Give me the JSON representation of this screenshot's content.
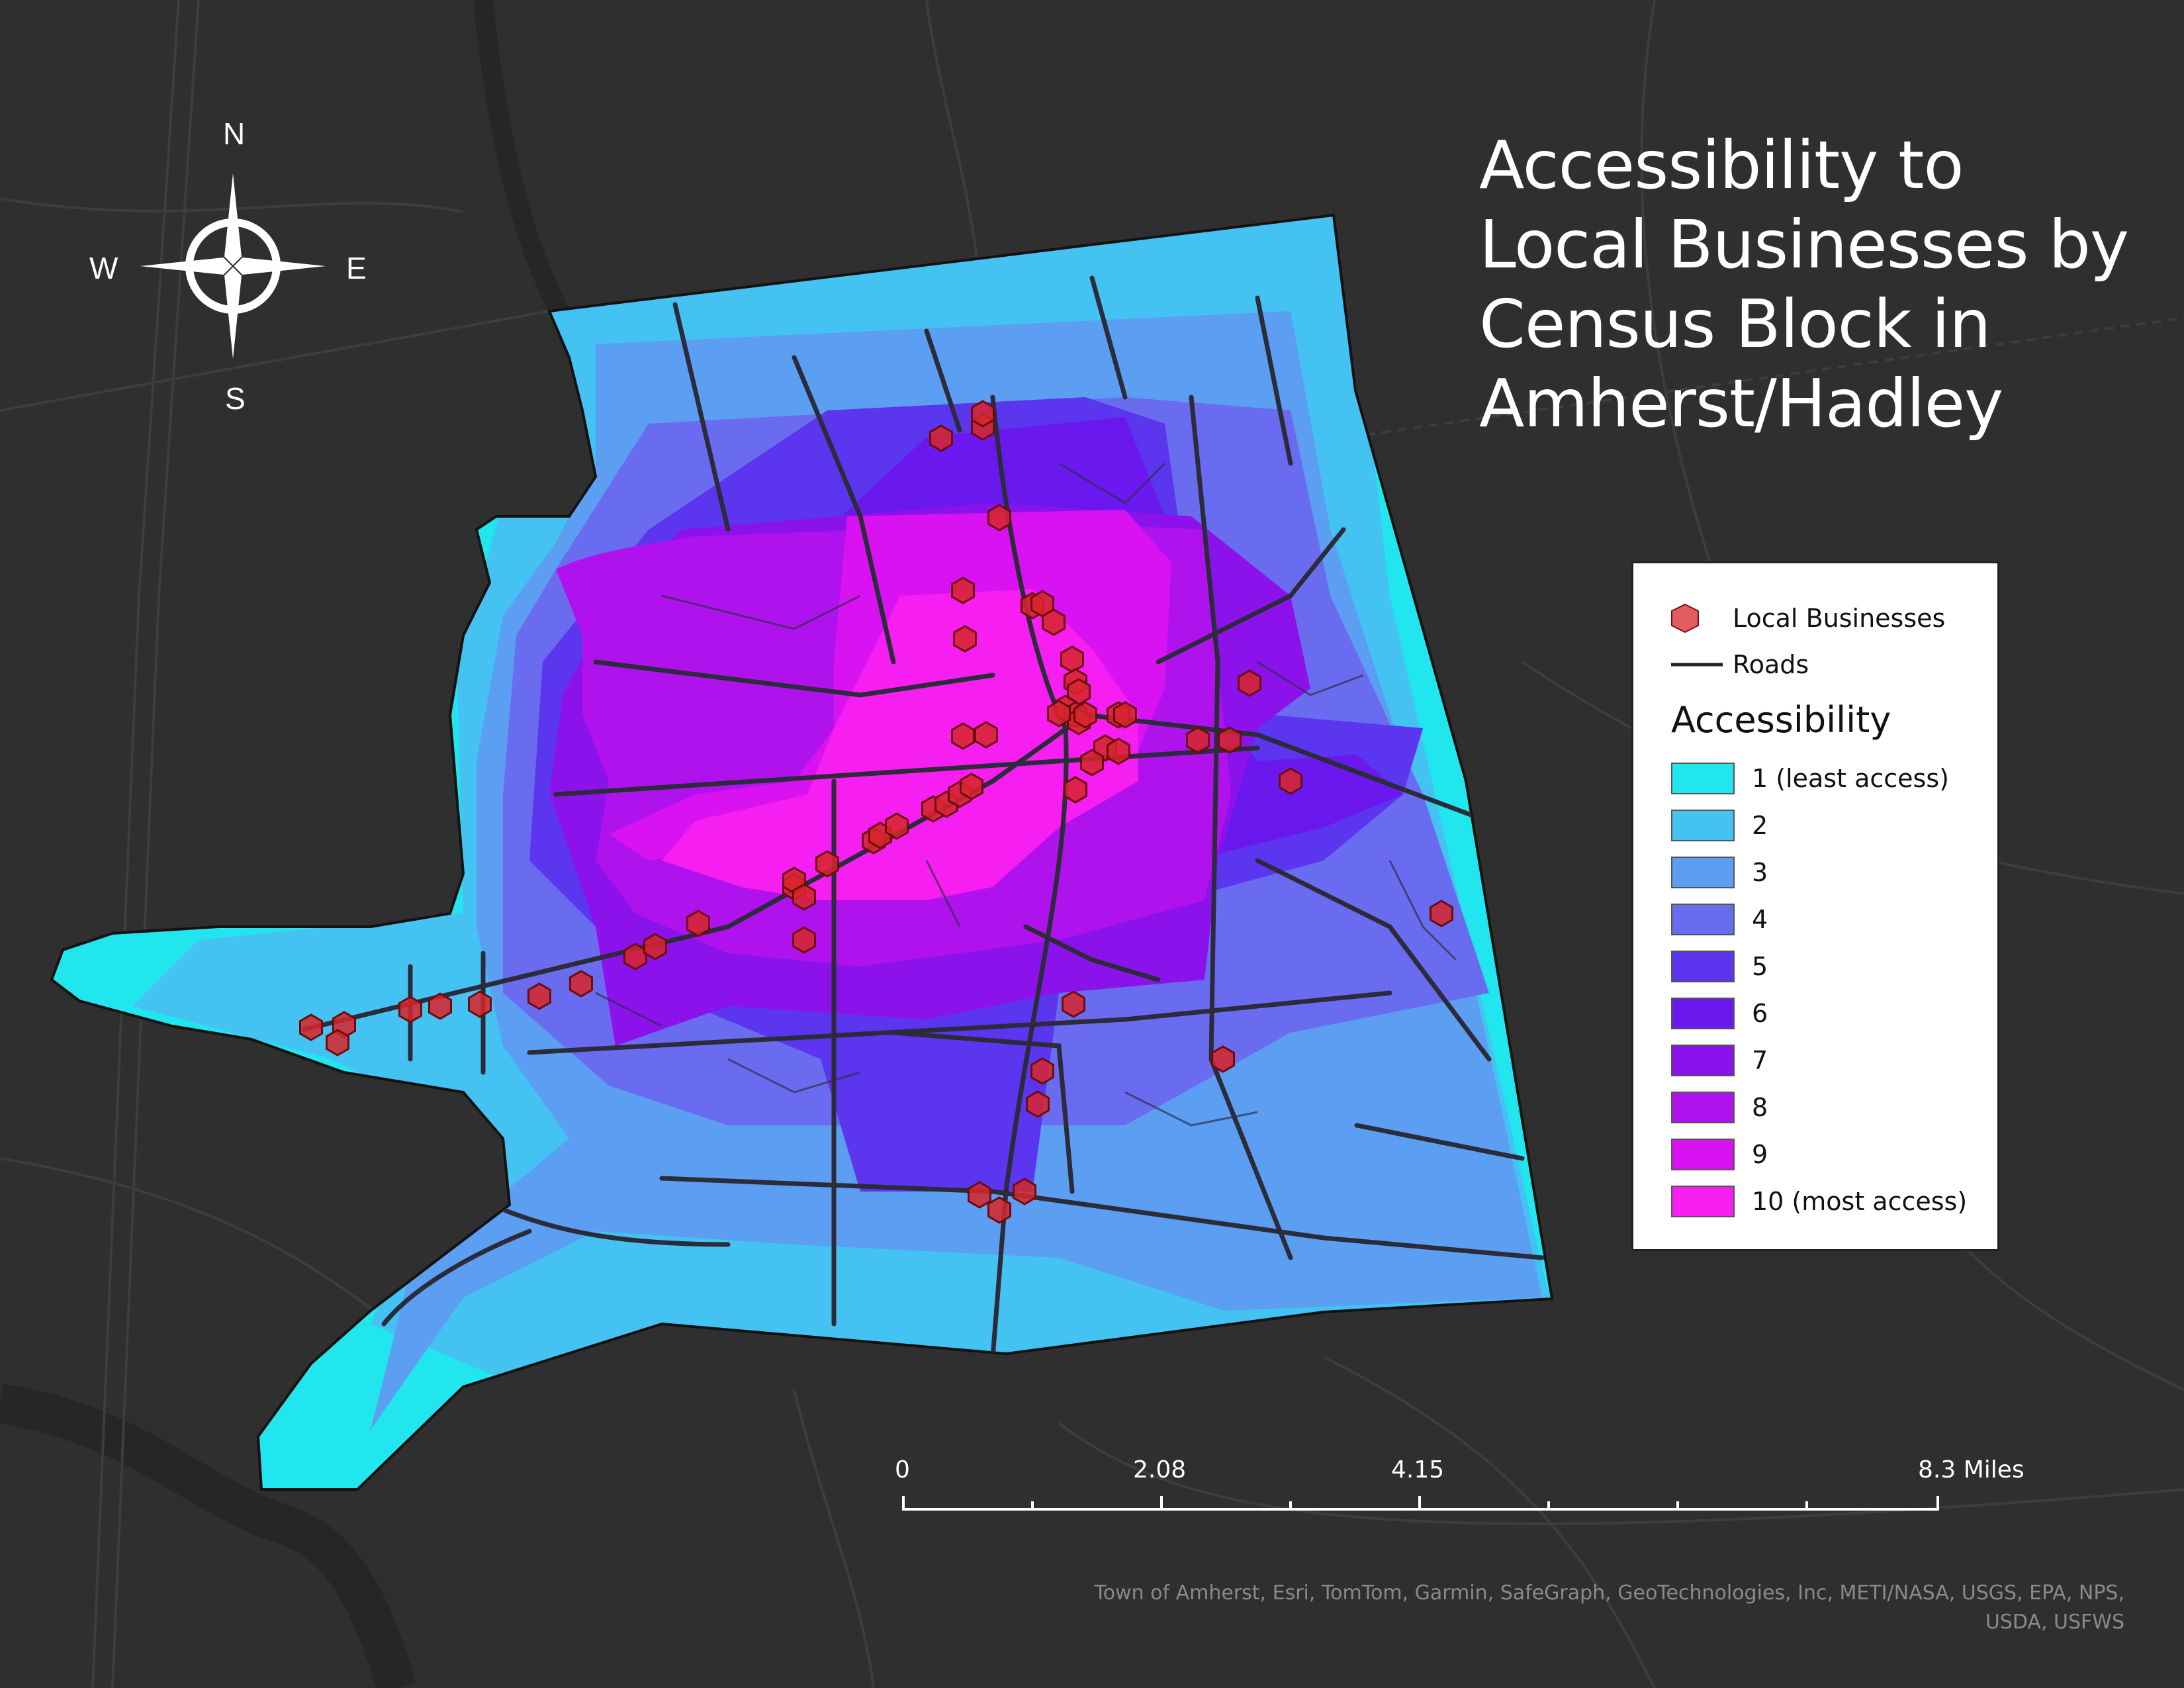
{
  "map": {
    "title_lines": [
      "Accessibility to",
      "Local Businesses by",
      "Census Block in",
      "Amherst/Hadley"
    ],
    "compass": {
      "n": "N",
      "s": "S",
      "e": "E",
      "w": "W"
    },
    "legend": {
      "business_label": "Local Businesses",
      "roads_label": "Roads",
      "heading": "Accessibility",
      "classes": [
        {
          "label": "1 (least access)",
          "color": "#22e6ee"
        },
        {
          "label": "2",
          "color": "#44c2f2"
        },
        {
          "label": "3",
          "color": "#5b9ef2"
        },
        {
          "label": "4",
          "color": "#6a6cf0"
        },
        {
          "label": "5",
          "color": "#5b36ee"
        },
        {
          "label": "6",
          "color": "#6a18ee"
        },
        {
          "label": "7",
          "color": "#8c12ec"
        },
        {
          "label": "8",
          "color": "#b012ee"
        },
        {
          "label": "9",
          "color": "#d812f0"
        },
        {
          "label": "10 (most access)",
          "color": "#f61ef0"
        }
      ],
      "business_color": "#d8262a"
    },
    "scale": {
      "labels": [
        "0",
        "2.08",
        "4.15",
        "8.3 Miles"
      ]
    },
    "credits_lines": [
      "Town of Amherst, Esri, TomTom, Garmin, SafeGraph, GeoTechnologies, Inc, METI/NASA, USGS, EPA, NPS,",
      "USDA, USFWS"
    ],
    "colors": {
      "background": "#2f2f2f",
      "road": "#2b2b3a",
      "basemap_line": "#444444",
      "river": "#242424"
    }
  }
}
